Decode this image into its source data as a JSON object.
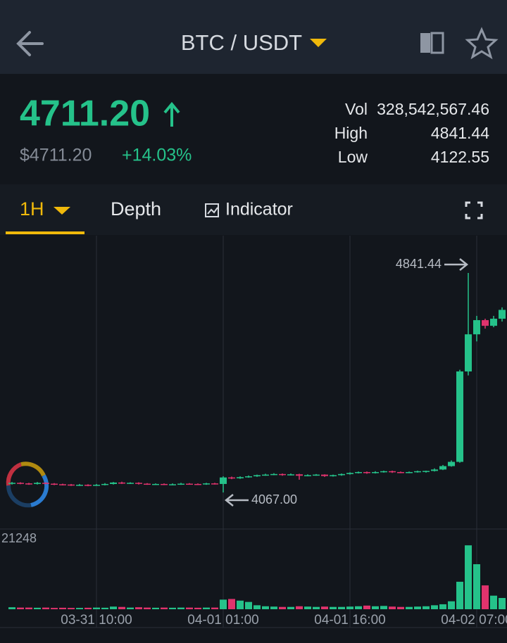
{
  "header": {
    "pair": "BTC / USDT"
  },
  "ticker": {
    "price": "4711.20",
    "price_usd": "$4711.20",
    "change": "+14.03%",
    "stats": [
      {
        "label": "Vol",
        "value": "328,542,567.46"
      },
      {
        "label": "High",
        "value": "4841.44"
      },
      {
        "label": "Low",
        "value": "4122.55"
      }
    ]
  },
  "tabs": [
    "1H",
    "Depth",
    "Indicator"
  ],
  "chart_data": {
    "type": "candlestick",
    "categories": [
      null,
      null,
      null,
      null,
      null,
      null,
      null,
      null,
      null,
      null,
      "03-31 10:00",
      null,
      null,
      null,
      null,
      null,
      null,
      null,
      null,
      null,
      null,
      null,
      null,
      null,
      null,
      "04-01 01:00",
      null,
      null,
      null,
      null,
      null,
      null,
      null,
      null,
      null,
      null,
      null,
      null,
      null,
      null,
      "04-01 16:00",
      null,
      null,
      null,
      null,
      null,
      null,
      null,
      null,
      null,
      null,
      null,
      null,
      null,
      null,
      "04-02 07:00",
      null,
      null,
      null
    ],
    "open": [
      4098,
      4101,
      4099,
      4097,
      4101,
      4098,
      4096,
      4095,
      4093,
      4094,
      4092,
      4094,
      4097,
      4102,
      4099,
      4101,
      4098,
      4096,
      4097,
      4095,
      4096,
      4098,
      4097,
      4096,
      4099,
      4097,
      4120,
      4117,
      4121,
      4124,
      4128,
      4130,
      4132,
      4129,
      4131,
      4126,
      4128,
      4130,
      4125,
      4128,
      4132,
      4136,
      4139,
      4136,
      4139,
      4142,
      4139,
      4137,
      4139,
      4142,
      4143,
      4148,
      4160,
      4175,
      4494,
      4625,
      4675,
      4655,
      4680
    ],
    "high": [
      4104,
      4103,
      4101,
      4104,
      4103,
      4100,
      4098,
      4097,
      4097,
      4096,
      4097,
      4100,
      4104,
      4105,
      4103,
      4103,
      4100,
      4099,
      4099,
      4099,
      4101,
      4100,
      4099,
      4101,
      4101,
      4124,
      4123,
      4124,
      4127,
      4130,
      4133,
      4135,
      4134,
      4134,
      4133,
      4131,
      4132,
      4131,
      4130,
      4134,
      4138,
      4141,
      4141,
      4142,
      4144,
      4144,
      4141,
      4141,
      4144,
      4144,
      4152,
      4164,
      4180,
      4500,
      4841.44,
      4690,
      4680,
      4690,
      4720
    ],
    "low": [
      4095,
      4096,
      4094,
      4095,
      4096,
      4093,
      4092,
      4090,
      4090,
      4089,
      4090,
      4092,
      4095,
      4097,
      4097,
      4095,
      4094,
      4094,
      4093,
      4093,
      4094,
      4095,
      4094,
      4094,
      4095,
      4067,
      4114,
      4115,
      4119,
      4122,
      4126,
      4128,
      4126,
      4127,
      4112,
      4124,
      4126,
      4122,
      4123,
      4126,
      4130,
      4134,
      4133,
      4134,
      4137,
      4136,
      4135,
      4135,
      4137,
      4137,
      4141,
      4146,
      4158,
      4172,
      4480,
      4600,
      4645,
      4650,
      4670
    ],
    "close": [
      4101,
      4099,
      4097,
      4101,
      4098,
      4096,
      4095,
      4093,
      4094,
      4092,
      4094,
      4097,
      4102,
      4099,
      4101,
      4098,
      4096,
      4097,
      4095,
      4096,
      4098,
      4097,
      4096,
      4099,
      4097,
      4120,
      4117,
      4121,
      4124,
      4128,
      4130,
      4132,
      4129,
      4131,
      4126,
      4128,
      4130,
      4125,
      4128,
      4132,
      4136,
      4139,
      4136,
      4139,
      4142,
      4139,
      4137,
      4139,
      4142,
      4143,
      4148,
      4160,
      4175,
      4494,
      4625,
      4675,
      4655,
      4680,
      4711.2
    ],
    "volume": [
      600,
      500,
      500,
      450,
      500,
      400,
      450,
      400,
      400,
      450,
      500,
      450,
      800,
      700,
      500,
      600,
      500,
      450,
      500,
      450,
      500,
      500,
      450,
      500,
      500,
      2900,
      3100,
      2600,
      2200,
      1200,
      900,
      800,
      700,
      700,
      900,
      800,
      700,
      800,
      700,
      700,
      800,
      900,
      1100,
      900,
      1000,
      800,
      700,
      700,
      800,
      900,
      1200,
      1500,
      2400,
      8300,
      19300,
      13600,
      7200,
      4100,
      3400
    ],
    "ylim": [
      3938,
      4973
    ],
    "volume_ylim": [
      0,
      21248
    ],
    "max_label": "4841.44",
    "min_label": "4067.00",
    "up_color": "#25c28a",
    "down_color": "#e0336d"
  }
}
